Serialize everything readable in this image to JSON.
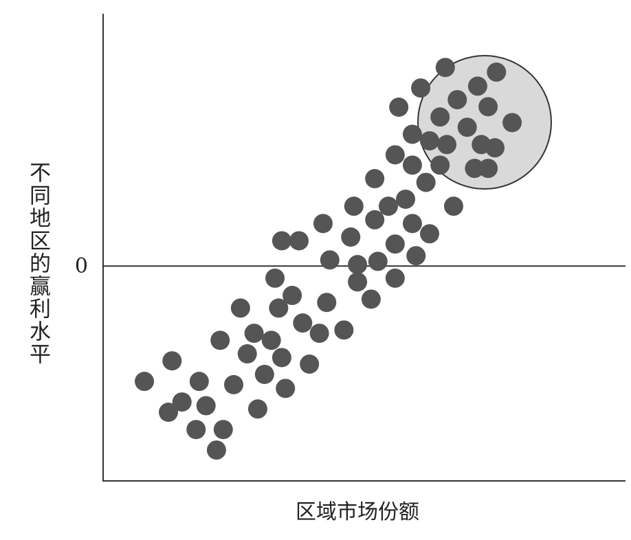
{
  "chart_data": {
    "type": "scatter",
    "x_label": "区域市场份额",
    "y_label": "不同地区的赢利水平",
    "color": "#555555",
    "xlim": [
      0,
      100
    ],
    "xticks": [],
    "ylim": [
      -46,
      54
    ],
    "yticks": [
      0
    ],
    "x": [
      65.5,
      75.3,
      60.8,
      71.7,
      56.6,
      67.8,
      64.5,
      73.7,
      78.3,
      59.2,
      69.7,
      62.5,
      72.4,
      55.9,
      65.8,
      75.0,
      59.2,
      71.1,
      64.5,
      73.7,
      52.0,
      61.8,
      57.9,
      67.1,
      48.0,
      54.6,
      52.0,
      59.2,
      42.1,
      62.5,
      34.2,
      37.5,
      47.4,
      55.9,
      59.9,
      43.4,
      48.7,
      52.6,
      32.9,
      55.9,
      48.7,
      36.2,
      42.8,
      51.3,
      26.3,
      33.6,
      38.2,
      41.4,
      46.1,
      28.9,
      32.2,
      22.4,
      27.6,
      34.2,
      39.5,
      13.2,
      7.9,
      18.4,
      30.9,
      25.0,
      34.9,
      15.1,
      19.7,
      12.5,
      29.6,
      23.0,
      17.8,
      21.7
    ],
    "values": [
      42.5,
      41.5,
      38.1,
      38.5,
      34.0,
      35.6,
      31.9,
      34.1,
      30.7,
      28.2,
      29.7,
      26.8,
      26.0,
      23.8,
      26.0,
      25.3,
      21.6,
      20.9,
      21.6,
      20.9,
      18.7,
      17.9,
      14.3,
      12.8,
      12.8,
      12.8,
      9.9,
      9.1,
      9.1,
      6.9,
      5.4,
      5.4,
      6.2,
      4.7,
      2.2,
      1.3,
      0.3,
      1.0,
      -2.6,
      -2.6,
      -3.4,
      -6.3,
      -7.8,
      -7.1,
      -9.0,
      -9.0,
      -12.2,
      -14.4,
      -13.7,
      -14.4,
      -15.9,
      -15.9,
      -18.8,
      -19.6,
      -21.0,
      -20.3,
      -24.7,
      -24.7,
      -23.2,
      -25.4,
      -26.2,
      -29.1,
      -29.9,
      -31.3,
      -30.6,
      -35.0,
      -35.0,
      -39.4
    ]
  }
}
